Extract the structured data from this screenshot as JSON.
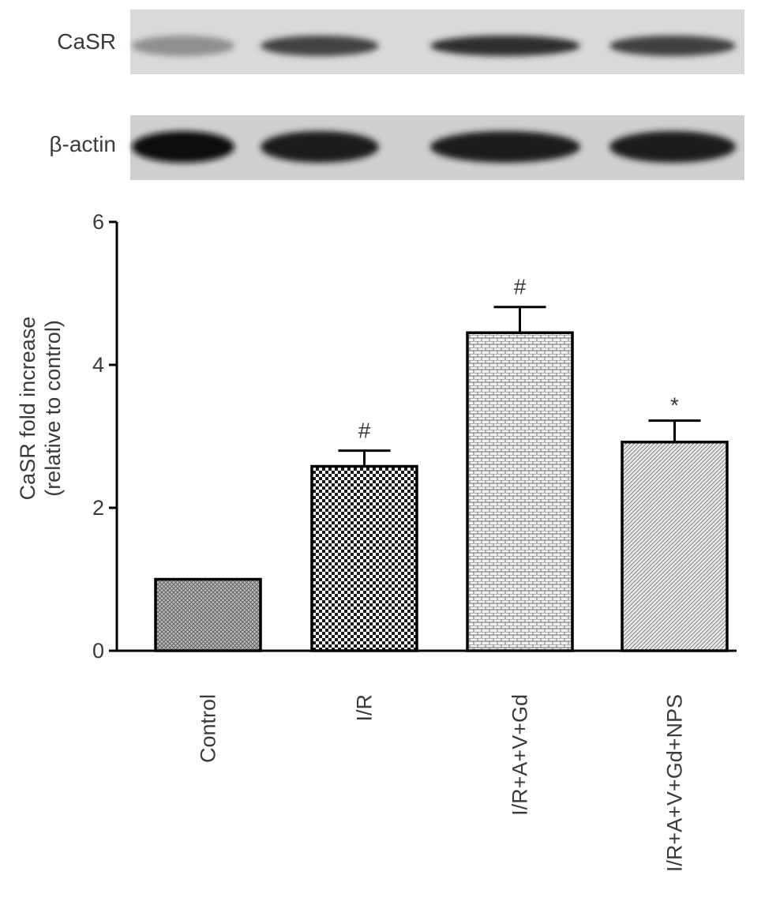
{
  "blot": {
    "lanes": 4,
    "rows": [
      {
        "label": "CaSR",
        "band_intensity": [
          0.35,
          0.72,
          0.82,
          0.74
        ]
      },
      {
        "label": "β-actin",
        "band_intensity": [
          0.97,
          0.92,
          0.92,
          0.9
        ]
      }
    ]
  },
  "chart_data": {
    "type": "bar",
    "categories": [
      "Control",
      "I/R",
      "I/R+A+V+Gd",
      "I/R+A+V+Gd+NPS"
    ],
    "values": [
      1.0,
      2.58,
      4.45,
      2.92
    ],
    "error": [
      0.0,
      0.22,
      0.36,
      0.3
    ],
    "annotations": [
      "",
      "#",
      "#",
      "*"
    ],
    "patterns": [
      "diagonal-crosshatch",
      "checker",
      "brick",
      "diagonal-lines"
    ],
    "ylabel": "CaSR fold increase\n(relative to control)",
    "yticks": [
      0,
      2,
      4,
      6
    ],
    "ylim": [
      0,
      6
    ],
    "grid": false,
    "legend": "none"
  }
}
